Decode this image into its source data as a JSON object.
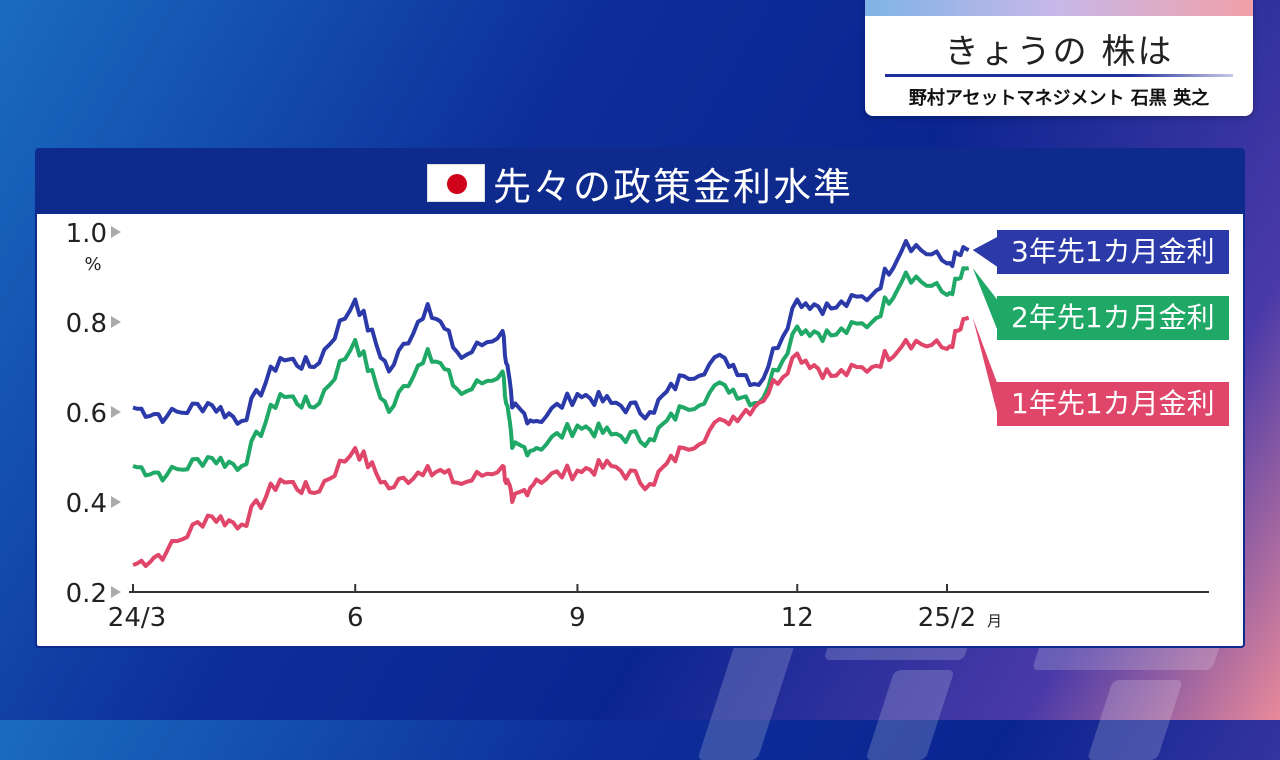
{
  "program": {
    "title": "きょうの 株は",
    "subtitle": "野村アセットマネジメント 石黒 英之"
  },
  "colors": {
    "panel_header": "#0d2a8c",
    "series_3y": "#2b3aa8",
    "series_2y": "#1fa866",
    "series_1y": "#e0456a"
  },
  "chart_data": {
    "type": "line",
    "title": "先々の政策金利水準",
    "ylabel": "%",
    "ylim": [
      0.2,
      1.0
    ],
    "yticks": [
      "0.2",
      "0.4",
      "0.6",
      "0.8",
      "1.0"
    ],
    "xticks": [
      "24/3",
      "6",
      "9",
      "12",
      "25/2"
    ],
    "x_unit": "月",
    "x": [
      "2024-03-01",
      "2024-03-15",
      "2024-04-01",
      "2024-04-15",
      "2024-05-01",
      "2024-05-15",
      "2024-06-01",
      "2024-06-15",
      "2024-07-01",
      "2024-07-15",
      "2024-08-01",
      "2024-08-05",
      "2024-08-15",
      "2024-09-01",
      "2024-09-15",
      "2024-10-01",
      "2024-10-15",
      "2024-11-01",
      "2024-11-15",
      "2024-12-01",
      "2024-12-15",
      "2025-01-01",
      "2025-01-15",
      "2025-02-01",
      "2025-02-10"
    ],
    "series": [
      {
        "name": "3年先1カ月金利",
        "color": "#2b3aa8",
        "values": [
          0.61,
          0.59,
          0.62,
          0.58,
          0.72,
          0.7,
          0.85,
          0.69,
          0.84,
          0.72,
          0.78,
          0.61,
          0.58,
          0.64,
          0.62,
          0.6,
          0.68,
          0.72,
          0.66,
          0.85,
          0.83,
          0.86,
          0.98,
          0.93,
          0.96
        ]
      },
      {
        "name": "2年先1カ月金利",
        "color": "#1fa866",
        "values": [
          0.48,
          0.46,
          0.5,
          0.48,
          0.64,
          0.61,
          0.76,
          0.6,
          0.74,
          0.64,
          0.69,
          0.52,
          0.52,
          0.57,
          0.55,
          0.54,
          0.61,
          0.66,
          0.62,
          0.79,
          0.77,
          0.8,
          0.91,
          0.86,
          0.92
        ]
      },
      {
        "name": "1年先1カ月金利",
        "color": "#e0456a",
        "values": [
          0.26,
          0.29,
          0.37,
          0.35,
          0.45,
          0.42,
          0.52,
          0.43,
          0.48,
          0.44,
          0.48,
          0.4,
          0.45,
          0.47,
          0.48,
          0.44,
          0.52,
          0.58,
          0.62,
          0.73,
          0.68,
          0.7,
          0.76,
          0.74,
          0.81
        ]
      }
    ]
  }
}
